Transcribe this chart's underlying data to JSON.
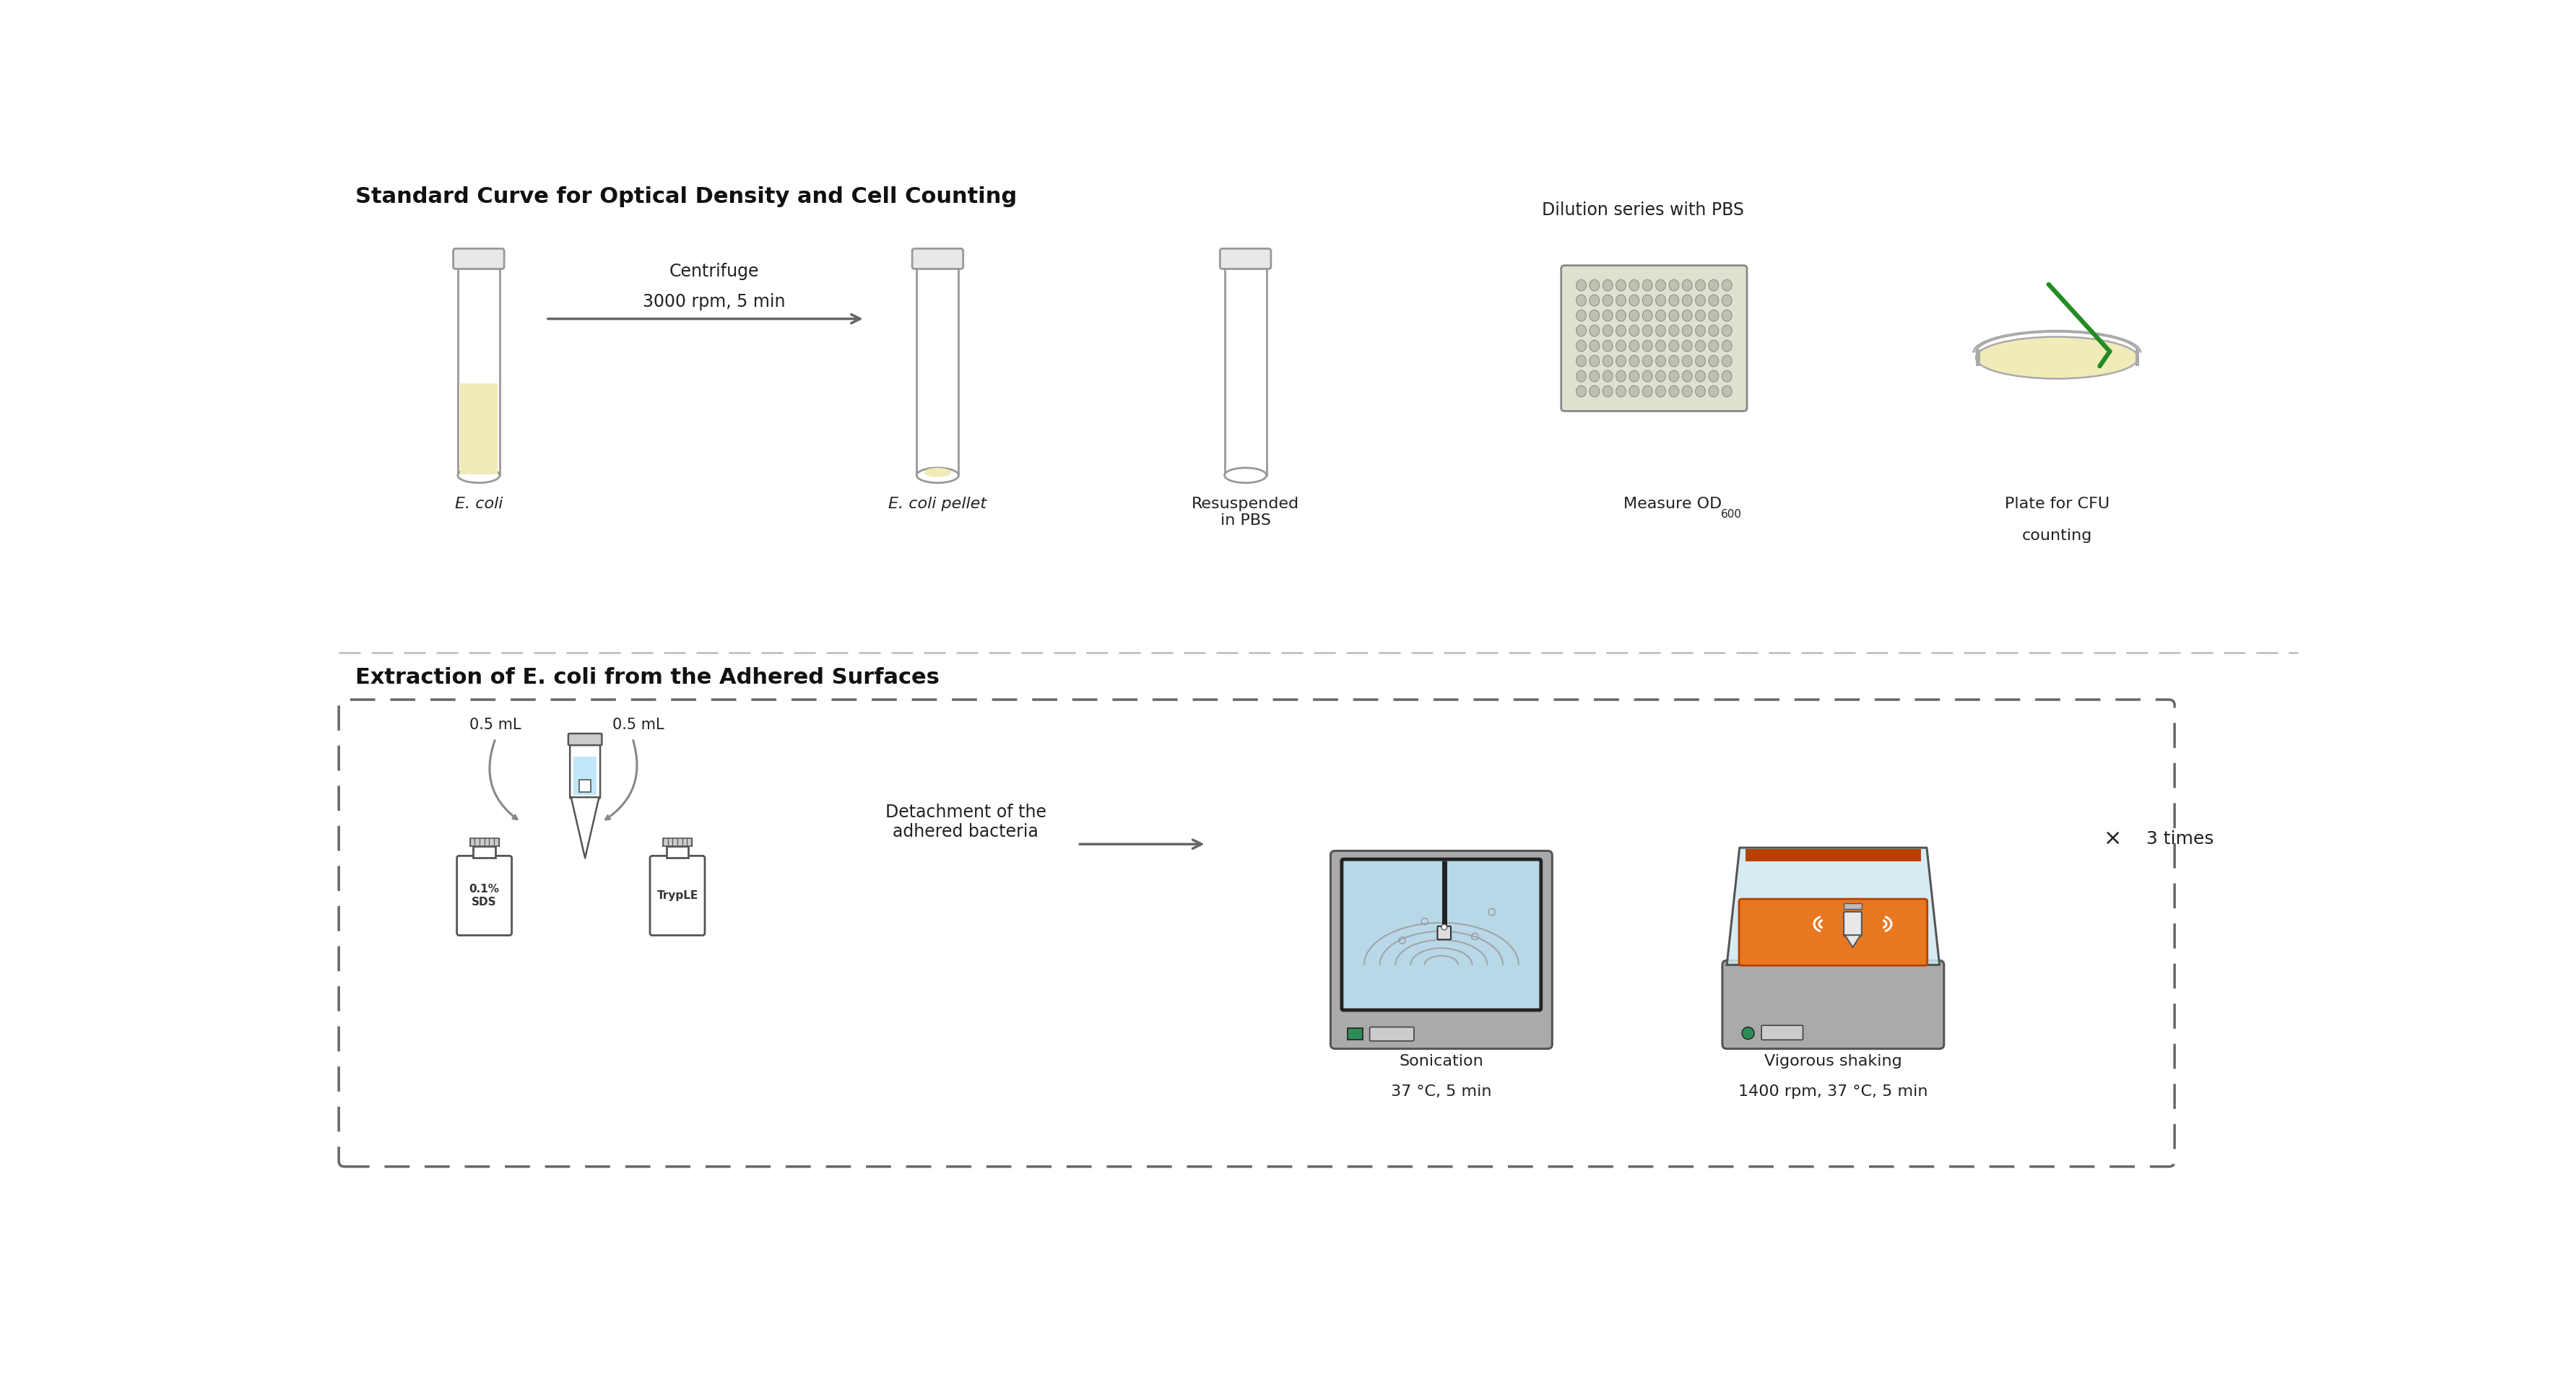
{
  "bg_color": "#ffffff",
  "title1": "Standard Curve for Optical Density and Cell Counting",
  "title2": "Extraction of E. coli from the Adhered Surfaces",
  "centrifuge_line1": "Centrifuge",
  "centrifuge_line2": "3000 rpm, 5 min",
  "dilution_text": "Dilution series with PBS",
  "label_ecoli": "E. coli",
  "label_pellet": "E. coli pellet",
  "label_resuspended": "Resuspended\nin PBS",
  "label_od": "Measure OD",
  "label_od_sub": "600",
  "label_cfu1": "Plate for CFU",
  "label_cfu2": "counting",
  "label_05ml_1": "0.5 mL",
  "label_05ml_2": "0.5 mL",
  "label_detach": "Detachment of the\nadhered bacteria",
  "label_sonication1": "Sonication",
  "label_sonication2": "37 °C, 5 min",
  "label_shaking1": "Vigorous shaking",
  "label_shaking2": "1400 rpm, 37 °C, 5 min",
  "label_times": "×",
  "label_3times": "3 times",
  "label_sds": "0.1%\nSDS",
  "label_tryple": "TrypLE",
  "tube_fill": "#f0ebb8",
  "tube_edge": "#999999",
  "arrow_color": "#666666",
  "petri_fill": "#f0ebb8",
  "blue_light": "#b8d8e8",
  "blue_very_light": "#d0e8f0",
  "orange_color": "#e87722",
  "orange_bar": "#c85000",
  "gray_body": "#aaaaaa",
  "gray_medium": "#888888",
  "gray_dark": "#555555",
  "gray_light": "#cccccc",
  "green_btn": "#2e8b57",
  "green_loop": "#228B22",
  "dashed_color": "#666666",
  "sep_color": "#bbbbbb",
  "plate_fill": "#e0e0d0",
  "well_fill": "#c0c0b0",
  "well_edge": "#888888",
  "white": "#ffffff",
  "black": "#111111",
  "text_color": "#222222"
}
